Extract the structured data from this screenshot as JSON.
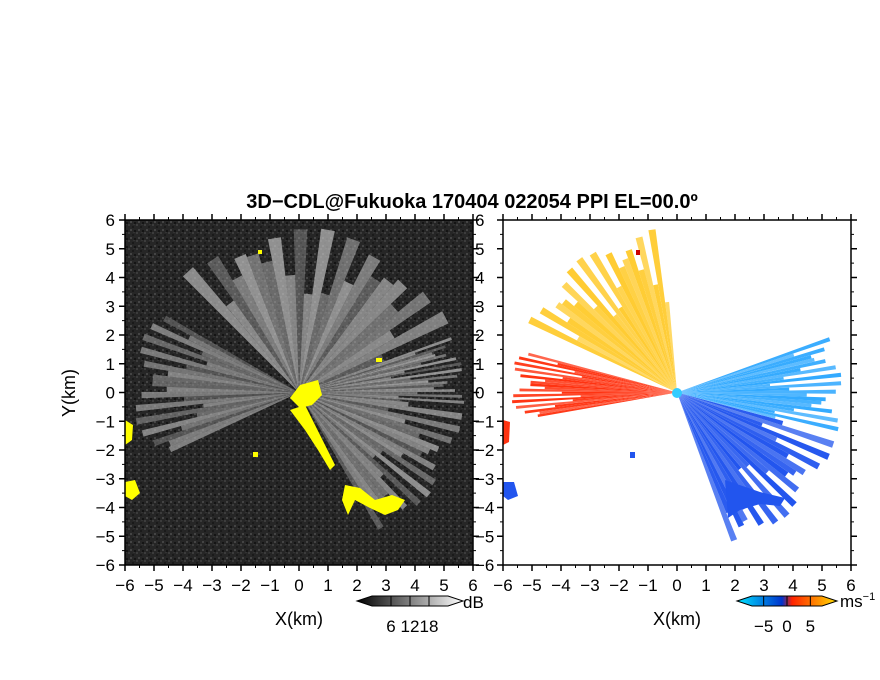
{
  "title": "3D−CDL@Fukuoka 170404 022054 PPI EL=00.0º",
  "chart_data": [
    {
      "type": "heatmap",
      "panel": "left",
      "xlabel": "X(km)",
      "ylabel": "Y(km)",
      "xlim": [
        -6,
        6
      ],
      "ylim": [
        -6,
        6
      ],
      "xticks": [
        -6,
        -5,
        -4,
        -3,
        -2,
        -1,
        0,
        1,
        2,
        3,
        4,
        5,
        6
      ],
      "yticks": [
        -6,
        -5,
        -4,
        -3,
        -2,
        -1,
        0,
        1,
        2,
        3,
        4,
        5,
        6
      ],
      "xtick_labels": [
        "−6",
        "−5",
        "−4",
        "−3",
        "−2",
        "−1",
        "0",
        "1",
        "2",
        "3",
        "4",
        "5",
        "6"
      ],
      "ytick_labels": [
        "−6",
        "−5",
        "−4",
        "−3",
        "−2",
        "−1",
        "0",
        "1",
        "2",
        "3",
        "4",
        "5",
        "6"
      ],
      "colorbar": {
        "unit": "dB",
        "range": [
          0,
          24
        ],
        "ticks": [
          6,
          12,
          18
        ],
        "tick_labels": [
          "6",
          "12",
          "18"
        ],
        "colors": [
          "#000000",
          "#ffffff"
        ]
      },
      "background_color": "#2a2a2a",
      "highlight_color": "#ffff00",
      "sectors_deg": [
        {
          "from": 20,
          "to": 135,
          "intensity": 0.55
        },
        {
          "from": 150,
          "to": 205,
          "intensity": 0.35
        },
        {
          "from": 300,
          "to": 355,
          "intensity": 0.5
        },
        {
          "from": 355,
          "to": 380,
          "intensity": 0.6
        }
      ]
    },
    {
      "type": "heatmap",
      "panel": "right",
      "xlabel": "X(km)",
      "xlim": [
        -6,
        6
      ],
      "ylim": [
        -6,
        6
      ],
      "xticks": [
        -6,
        -5,
        -4,
        -3,
        -2,
        -1,
        0,
        1,
        2,
        3,
        4,
        5,
        6
      ],
      "xtick_labels": [
        "−6",
        "−5",
        "−4",
        "−3",
        "−2",
        "−1",
        "0",
        "1",
        "2",
        "3",
        "4",
        "5",
        "6"
      ],
      "ytick_labels": [
        "6",
        "5",
        "4",
        "3",
        "2",
        "1",
        "0",
        "−1",
        "−2",
        "−3",
        "−4",
        "−5",
        "−6"
      ],
      "colorbar": {
        "unit": "ms",
        "unit_superscript": "−1",
        "range": [
          -7.5,
          7.5
        ],
        "ticks": [
          -5,
          0,
          5
        ],
        "tick_labels": [
          "−5",
          "0",
          "5"
        ],
        "colors": [
          "#00e5ff",
          "#0033cc",
          "#ff2200",
          "#ffdd00"
        ]
      },
      "sectors_deg": [
        {
          "from": 95,
          "to": 155,
          "color": "#ffcc33"
        },
        {
          "from": 165,
          "to": 190,
          "color": "#ff3311"
        },
        {
          "from": 290,
          "to": 345,
          "color": "#2255ee"
        },
        {
          "from": 345,
          "to": 380,
          "color": "#33aaff"
        }
      ]
    }
  ]
}
